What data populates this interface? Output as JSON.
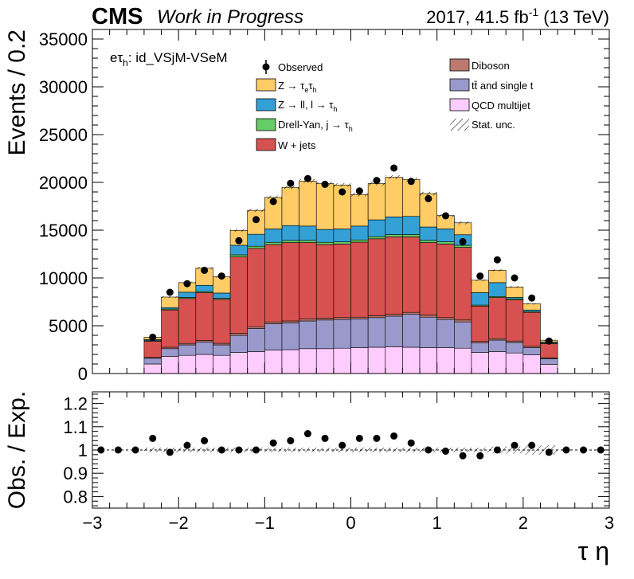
{
  "header": {
    "experiment": "CMS",
    "status": "Work in Progress",
    "lumi_prefix": "2017, 41.5 fb",
    "lumi_exp": "-1",
    "lumi_suffix": " (13 TeV)"
  },
  "channel_label": {
    "pre": "eτ",
    "sub": "h",
    "post": ": id_VSjM-VSeM"
  },
  "chart_data": [
    {
      "type": "bar",
      "stacked": true,
      "ylabel": "Events / 0.2",
      "xlim": [
        -3,
        3
      ],
      "ylim": [
        0,
        36000
      ],
      "y_ticks": [
        0,
        5000,
        10000,
        15000,
        20000,
        25000,
        30000,
        35000
      ],
      "bin_edges": [
        -2.4,
        -2.2,
        -2.0,
        -1.8,
        -1.6,
        -1.4,
        -1.2,
        -1.0,
        -0.8,
        -0.6,
        -0.4,
        -0.2,
        0.0,
        0.2,
        0.4,
        0.6,
        0.8,
        1.0,
        1.2,
        1.4,
        1.6,
        1.8,
        2.0,
        2.2,
        2.4
      ],
      "stack_order": [
        "QCD multijet",
        "tt̄ and single t",
        "Diboson",
        "W + jets",
        "Drell-Yan, j → τh",
        "Z → ll, l → τh",
        "Z → τeτh"
      ],
      "series": [
        {
          "name": "QCD multijet",
          "color": "#ffccff",
          "values": [
            1000,
            1800,
            1900,
            2000,
            1900,
            2200,
            2300,
            2450,
            2500,
            2600,
            2600,
            2650,
            2700,
            2750,
            2800,
            2750,
            2700,
            2700,
            2650,
            2200,
            2300,
            2150,
            1950,
            950
          ]
        },
        {
          "name": "tt̄ and single t",
          "color": "#9999cc",
          "values": [
            600,
            800,
            1100,
            1300,
            1100,
            1800,
            2400,
            2750,
            2800,
            2900,
            3000,
            3000,
            3000,
            3100,
            3200,
            3450,
            3200,
            2950,
            2750,
            1000,
            1200,
            1100,
            750,
            600
          ]
        },
        {
          "name": "Diboson",
          "color": "#bb7a70",
          "values": [
            80,
            150,
            150,
            160,
            160,
            200,
            200,
            200,
            200,
            200,
            200,
            200,
            200,
            200,
            200,
            200,
            200,
            200,
            200,
            160,
            150,
            150,
            150,
            80
          ]
        },
        {
          "name": "W + jets",
          "color": "#d6514f",
          "values": [
            1700,
            3900,
            4700,
            5000,
            4600,
            8000,
            8200,
            8100,
            8200,
            8000,
            7700,
            7700,
            7850,
            8050,
            8100,
            7900,
            7600,
            7700,
            7600,
            3700,
            4300,
            4300,
            3550,
            1500
          ]
        },
        {
          "name": "Drell-Yan, j → τh",
          "color": "#66cc66",
          "values": [
            60,
            100,
            110,
            120,
            110,
            220,
            220,
            230,
            230,
            230,
            230,
            230,
            230,
            230,
            240,
            240,
            230,
            230,
            220,
            100,
            110,
            110,
            100,
            60
          ]
        },
        {
          "name": "Z → ll, l → τh",
          "color": "#33a1d6",
          "values": [
            110,
            150,
            550,
            650,
            550,
            1000,
            1250,
            1400,
            1550,
            1500,
            1350,
            1350,
            1450,
            1750,
            1850,
            1900,
            1400,
            1350,
            1100,
            1300,
            1450,
            150,
            150,
            100
          ]
        },
        {
          "name": "Z → τeτh",
          "color": "#ffcc66",
          "values": [
            250,
            1100,
            1000,
            1800,
            1700,
            1550,
            2500,
            3300,
            4000,
            4700,
            4800,
            4600,
            3300,
            3800,
            4150,
            3850,
            3500,
            1400,
            1250,
            1300,
            1300,
            1100,
            650,
            200
          ]
        }
      ],
      "observed": {
        "name": "Observed",
        "x": [
          -2.9,
          -2.7,
          -2.5,
          -2.3,
          -2.1,
          -1.9,
          -1.7,
          -1.5,
          -1.3,
          -1.1,
          -0.9,
          -0.7,
          -0.5,
          -0.3,
          -0.1,
          0.1,
          0.3,
          0.5,
          0.7,
          0.9,
          1.1,
          1.3,
          1.5,
          1.7,
          1.9,
          2.1,
          2.3,
          2.5,
          2.7,
          2.9
        ],
        "values": [
          0,
          0,
          0,
          3800,
          8500,
          9400,
          10800,
          10200,
          13900,
          16100,
          18000,
          19900,
          20400,
          19800,
          19000,
          19100,
          20200,
          21500,
          20100,
          18300,
          16500,
          13800,
          10200,
          11900,
          10000,
          7900,
          3400,
          0,
          0,
          0
        ]
      },
      "legend": {
        "placement": "top",
        "entries": [
          "Observed",
          "Z → τeτh",
          "Z → ll, l → τh",
          "Drell-Yan, j → τh",
          "W + jets",
          "Diboson",
          "tt̄ and single t",
          "QCD multijet",
          "Stat. unc."
        ]
      }
    },
    {
      "type": "scatter",
      "xlabel": "τ η",
      "ylabel": "Obs. / Exp.",
      "xlim": [
        -3,
        3
      ],
      "ylim": [
        0.75,
        1.25
      ],
      "y_ticks": [
        0.8,
        0.9,
        1,
        1.1,
        1.2
      ],
      "y_tick_labels": [
        "0.8",
        "0.9",
        "1",
        "1.1",
        "1.2"
      ],
      "x_ticks": [
        -3,
        -2,
        -1,
        0,
        1,
        2,
        3
      ],
      "x_tick_labels": [
        "−3",
        "−2",
        "−1",
        "0",
        "1",
        "2",
        "3"
      ],
      "reference_line": 1,
      "x": [
        -2.9,
        -2.7,
        -2.5,
        -2.3,
        -2.1,
        -1.9,
        -1.7,
        -1.5,
        -1.3,
        -1.1,
        -0.9,
        -0.7,
        -0.5,
        -0.3,
        -0.1,
        0.1,
        0.3,
        0.5,
        0.7,
        0.9,
        1.1,
        1.3,
        1.5,
        1.7,
        1.9,
        2.1,
        2.3,
        2.5,
        2.7,
        2.9
      ],
      "values": [
        1.0,
        1.0,
        1.0,
        1.05,
        0.99,
        1.02,
        1.04,
        1.0,
        1.0,
        1.0,
        1.03,
        1.04,
        1.07,
        1.05,
        1.02,
        1.05,
        1.05,
        1.06,
        1.03,
        1.0,
        0.995,
        0.975,
        0.975,
        1.0,
        1.02,
        1.02,
        0.99,
        1.0,
        1.0,
        1.0
      ],
      "stat_unc_band": {
        "x_range": [
          -2.4,
          2.4
        ],
        "half_width": [
          0.01,
          0.01,
          0.01,
          0.01,
          0.01,
          0.01,
          0.01,
          0.01,
          0.01,
          0.01,
          0.01,
          0.01,
          0.01,
          0.01,
          0.01,
          0.01,
          0.01,
          0.01,
          0.01,
          0.01,
          0.015,
          0.015,
          0.02,
          0.02
        ]
      }
    }
  ]
}
